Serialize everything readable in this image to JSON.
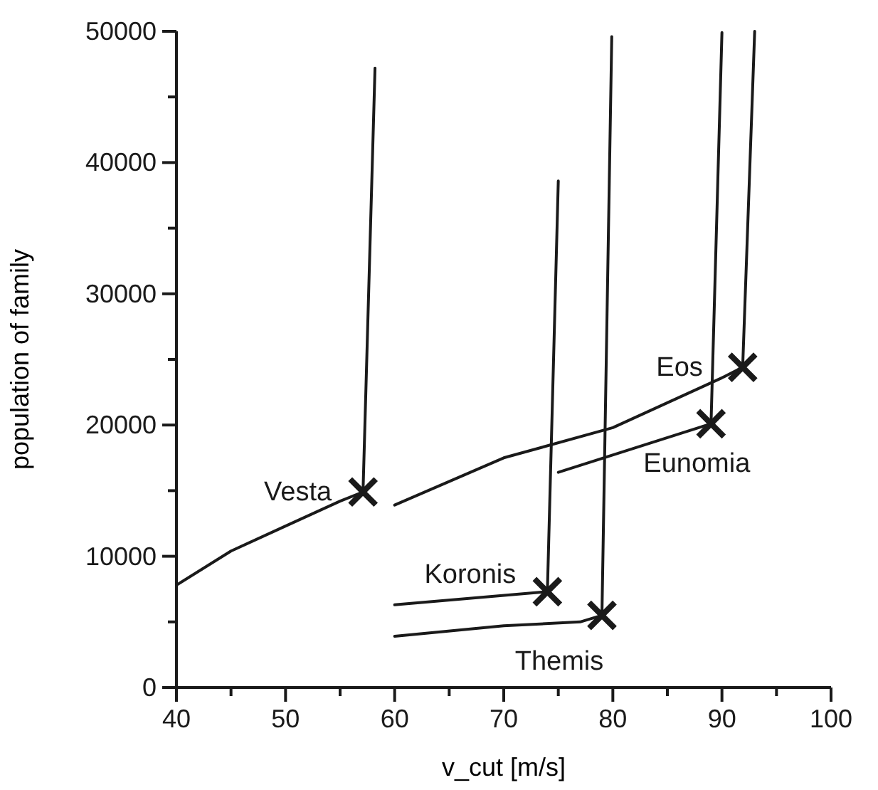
{
  "chart_data": {
    "type": "line",
    "xlabel": "v_cut [m/s]",
    "ylabel": "population of family",
    "xlim": [
      40,
      100
    ],
    "ylim": [
      0,
      50000
    ],
    "xticks": [
      40,
      {
        "value": 45,
        "label": null
      },
      50,
      {
        "value": 55,
        "label": null
      },
      60,
      {
        "value": 65,
        "label": null
      },
      70,
      {
        "value": 75,
        "label": null
      },
      80,
      {
        "value": 85,
        "label": null
      },
      90,
      {
        "value": 95,
        "label": null
      },
      100
    ],
    "yticks": [
      0,
      {
        "value": 5000,
        "label": null
      },
      10000,
      {
        "value": 15000,
        "label": null
      },
      20000,
      {
        "value": 25000,
        "label": null
      },
      30000,
      {
        "value": 35000,
        "label": null
      },
      40000,
      {
        "value": 45000,
        "label": null
      },
      50000
    ],
    "grid": false,
    "marker": "none",
    "line_style": "solid",
    "series": [
      {
        "type": "line",
        "color": "#1a1a1a",
        "x": [
          40,
          45,
          50,
          55,
          57.1
        ],
        "values": [
          7800,
          10400,
          12300,
          14200,
          14900
        ]
      },
      {
        "type": "line",
        "color": "#1a1a1a",
        "x": [
          57.1,
          58.2
        ],
        "values": [
          14900,
          47200
        ]
      },
      {
        "type": "line",
        "color": "#1a1a1a",
        "x": [
          60,
          70,
          80,
          90,
          91.9
        ],
        "values": [
          13900,
          17500,
          19800,
          23600,
          24400
        ]
      },
      {
        "type": "line",
        "color": "#1a1a1a",
        "x": [
          91.9,
          93
        ],
        "values": [
          24400,
          50000
        ]
      },
      {
        "type": "line",
        "color": "#1a1a1a",
        "x": [
          75,
          89
        ],
        "values": [
          16400,
          20100
        ]
      },
      {
        "type": "line",
        "color": "#1a1a1a",
        "x": [
          89,
          90
        ],
        "values": [
          20100,
          49900
        ]
      },
      {
        "type": "line",
        "color": "#1a1a1a",
        "x": [
          60,
          74
        ],
        "values": [
          6300,
          7300
        ]
      },
      {
        "type": "line",
        "color": "#1a1a1a",
        "x": [
          74,
          75
        ],
        "values": [
          7300,
          38600
        ]
      },
      {
        "type": "line",
        "color": "#1a1a1a",
        "x": [
          60,
          70,
          77,
          79
        ],
        "values": [
          3900,
          4700,
          5000,
          5500
        ]
      },
      {
        "type": "line",
        "color": "#1a1a1a",
        "x": [
          79,
          79.9
        ],
        "values": [
          5500,
          49600
        ]
      },
      {
        "type": "scatter",
        "marker": "cross",
        "color": "#1a1a1a",
        "x": [
          57.1,
          91.9,
          89,
          74,
          79
        ],
        "values": [
          14900,
          24400,
          20100,
          7300,
          5500
        ]
      }
    ],
    "annotations": [
      {
        "text": "Vesta",
        "x": 57.1,
        "y": 14900
      },
      {
        "text": "Eos",
        "x": 91.9,
        "y": 24400
      },
      {
        "text": "Eunomia",
        "x": 89,
        "y": 20100
      },
      {
        "text": "Koronis",
        "x": 74,
        "y": 7300
      },
      {
        "text": "Themis",
        "x": 79,
        "y": 5500
      }
    ]
  }
}
